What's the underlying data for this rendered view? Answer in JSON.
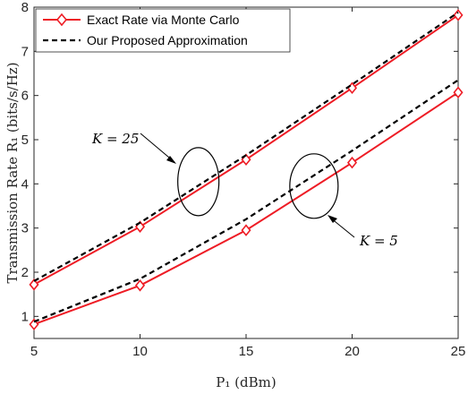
{
  "chart_data": {
    "type": "line",
    "xlabel": "P₁ (dBm)",
    "ylabel": "Transmission Rate R₁ (bits/s/Hz)",
    "xlim": [
      5,
      25
    ],
    "ylim": [
      0.5,
      8
    ],
    "xticks": [
      5,
      10,
      15,
      20,
      25
    ],
    "yticks": [
      1,
      2,
      3,
      4,
      5,
      6,
      7,
      8
    ],
    "grid": false,
    "legend_position": "top-left",
    "series": [
      {
        "name": "Exact Rate via Monte Carlo",
        "group": "K = 25",
        "style": "solid-diamond",
        "color": "#ee1c25",
        "x": [
          5,
          10,
          15,
          20,
          25
        ],
        "y": [
          1.72,
          3.03,
          4.55,
          6.17,
          7.82
        ]
      },
      {
        "name": "Our Proposed Approximation",
        "group": "K = 25",
        "style": "dashed",
        "color": "#000000",
        "x": [
          5,
          10,
          15,
          20,
          25
        ],
        "y": [
          1.8,
          3.12,
          4.65,
          6.25,
          7.88
        ]
      },
      {
        "name": "Exact Rate via Monte Carlo",
        "group": "K = 5",
        "style": "solid-diamond",
        "color": "#ee1c25",
        "x": [
          5,
          10,
          15,
          20,
          25
        ],
        "y": [
          0.82,
          1.7,
          2.95,
          4.48,
          6.07
        ]
      },
      {
        "name": "Our Proposed Approximation",
        "group": "K = 5",
        "style": "dashed",
        "color": "#000000",
        "x": [
          5,
          10,
          15,
          20,
          25
        ],
        "y": [
          0.88,
          1.85,
          3.2,
          4.75,
          6.35
        ]
      }
    ],
    "legend": [
      {
        "label": "Exact Rate via Monte Carlo",
        "style": "solid-diamond",
        "color": "#ee1c25"
      },
      {
        "label": "Our Proposed Approximation",
        "style": "dashed",
        "color": "#000000"
      }
    ],
    "annotations": [
      {
        "text": "K = 25",
        "ellipse_center": [
          12.75,
          4.05
        ],
        "arrow_to": [
          11.2,
          3.75
        ]
      },
      {
        "text": "K = 5",
        "ellipse_center": [
          18.2,
          3.95
        ],
        "arrow_to": [
          19.0,
          3.35
        ]
      }
    ]
  }
}
